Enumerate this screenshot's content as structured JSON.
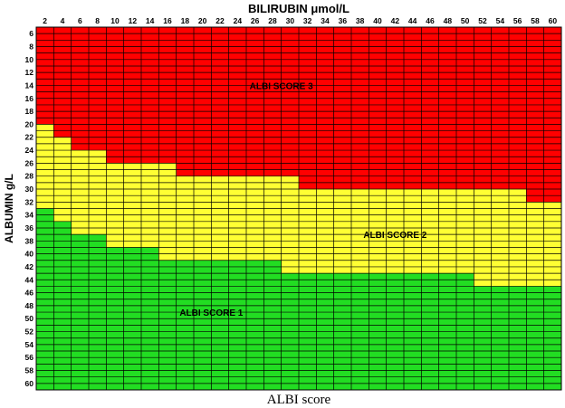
{
  "chart_data": {
    "type": "heatmap",
    "title": "BILIRUBIN μmol/L",
    "xlabel": "BILIRUBIN μmol/L",
    "ylabel": "ALBUMIN g/L",
    "caption": "ALBI score",
    "x_tick_labels": [
      2,
      4,
      6,
      8,
      10,
      12,
      14,
      16,
      18,
      20,
      22,
      24,
      26,
      28,
      30,
      32,
      34,
      36,
      38,
      40,
      42,
      44,
      46,
      48,
      50,
      52,
      54,
      56,
      58,
      60
    ],
    "y_tick_labels": [
      6,
      8,
      10,
      12,
      14,
      16,
      18,
      20,
      22,
      24,
      26,
      28,
      30,
      32,
      34,
      36,
      38,
      40,
      42,
      44,
      46,
      48,
      50,
      52,
      54,
      56,
      58,
      60
    ],
    "x_range": [
      1,
      61
    ],
    "y_range": [
      5,
      61
    ],
    "grid": true,
    "cell_columns": 30,
    "cell_rows_per_tick": 2,
    "zones": [
      {
        "name": "ALBI SCORE 3",
        "color": "#ff0000",
        "label_x": 29,
        "label_y": 14
      },
      {
        "name": "ALBI SCORE 2",
        "color": "#ffff33",
        "label_x": 42,
        "label_y": 37
      },
      {
        "name": "ALBI SCORE 1",
        "color": "#22dd22",
        "label_x": 21,
        "label_y": 49
      }
    ],
    "score3_max_albumin": [
      19.5,
      21.5,
      23.5,
      23.5,
      25.5,
      25.5,
      25.5,
      25.5,
      27.5,
      27.5,
      27.5,
      27.5,
      27.5,
      27.5,
      27.5,
      29.5,
      29.5,
      29.5,
      29.5,
      29.5,
      29.5,
      29.5,
      29.5,
      29.5,
      29.5,
      29.5,
      29.5,
      29.5,
      31.5,
      31.5
    ],
    "score1_min_albumin": [
      33.5,
      35.5,
      37.5,
      37.5,
      39.5,
      39.5,
      39.5,
      41.5,
      41.5,
      41.5,
      41.5,
      41.5,
      41.5,
      41.5,
      43.5,
      43.5,
      43.5,
      43.5,
      43.5,
      43.5,
      43.5,
      43.5,
      43.5,
      43.5,
      43.5,
      45.5,
      45.5,
      45.5,
      45.5,
      45.5
    ]
  }
}
